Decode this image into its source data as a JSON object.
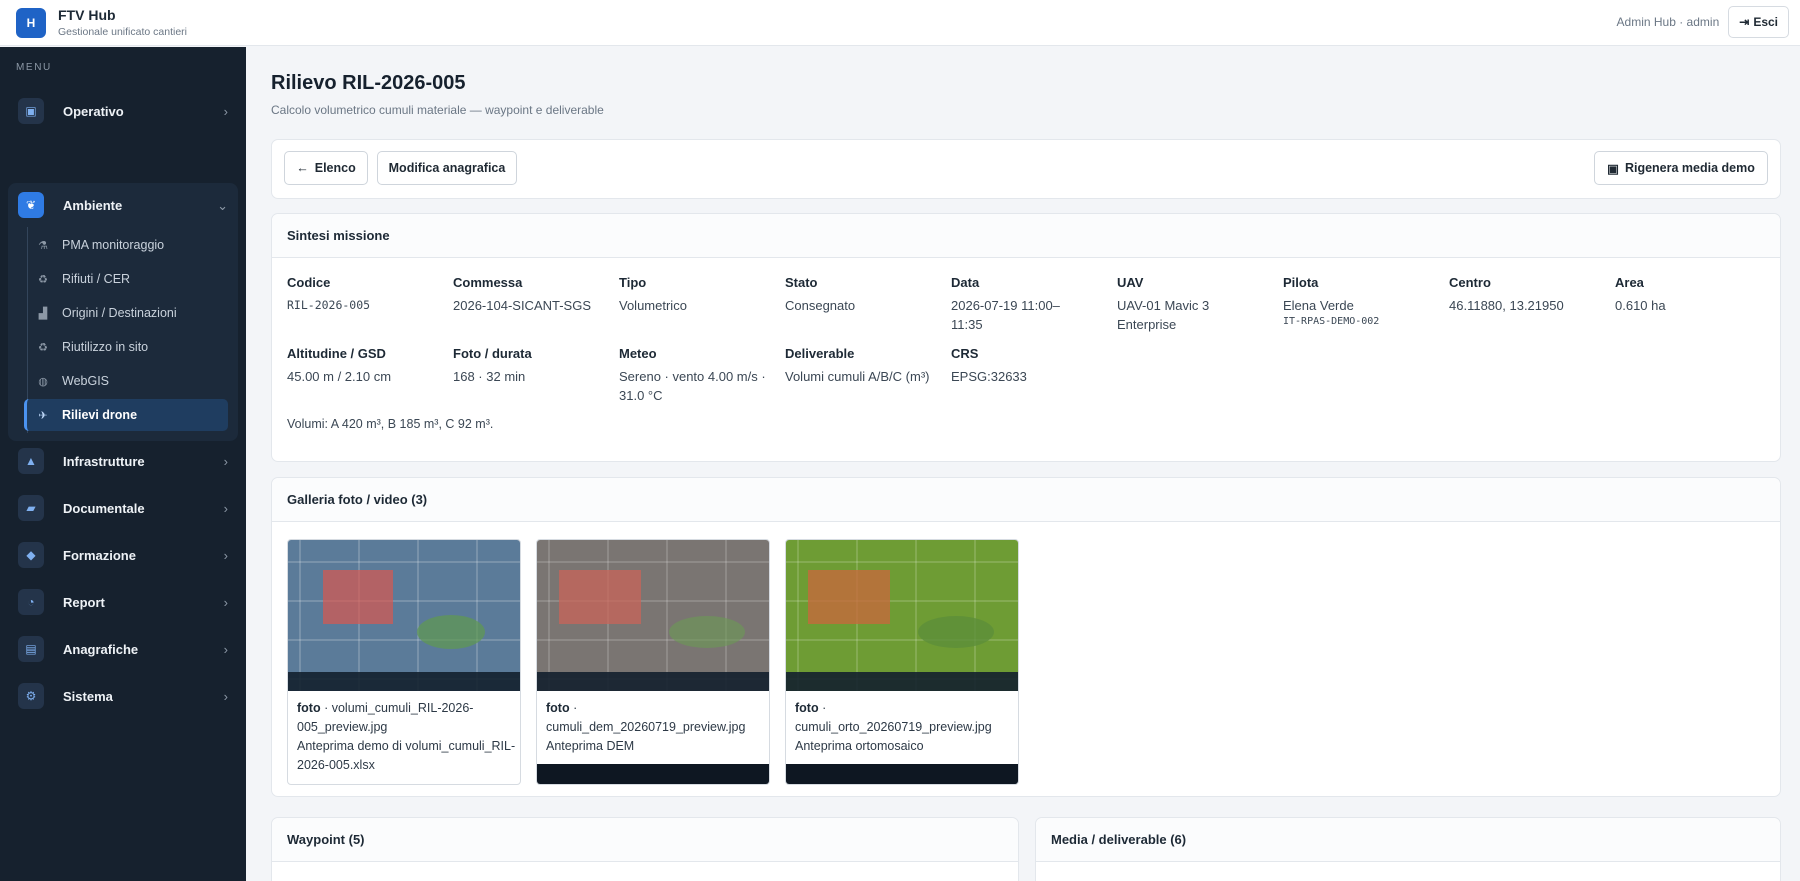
{
  "app": {
    "logo_letter": "H",
    "title": "FTV Hub",
    "subtitle": "Gestionale unificato cantieri"
  },
  "header": {
    "user": "Admin Hub · admin",
    "logout_label": "Esci"
  },
  "sidebar": {
    "heading": "MENU",
    "items": [
      {
        "label": "Operativo",
        "icon": "briefcase-icon"
      },
      {
        "label": "Ambiente",
        "icon": "leaf-icon",
        "expanded": true
      },
      {
        "label": "Infrastrutture",
        "icon": "road-icon"
      },
      {
        "label": "Documentale",
        "icon": "folder-icon"
      },
      {
        "label": "Formazione",
        "icon": "graduation-cap-icon"
      },
      {
        "label": "Report",
        "icon": "pie-chart-icon"
      },
      {
        "label": "Anagrafiche",
        "icon": "id-card-icon"
      },
      {
        "label": "Sistema",
        "icon": "gear-icon"
      }
    ],
    "ambiente_sub": [
      {
        "label": "PMA monitoraggio",
        "icon": "flask-icon"
      },
      {
        "label": "Rifiuti / CER",
        "icon": "recycle-icon"
      },
      {
        "label": "Origini / Destinazioni",
        "icon": "industry-icon"
      },
      {
        "label": "Riutilizzo in sito",
        "icon": "recycle-icon"
      },
      {
        "label": "WebGIS",
        "icon": "globe-icon"
      },
      {
        "label": "Rilievi drone",
        "icon": "drone-icon",
        "active": true
      }
    ]
  },
  "page": {
    "title": "Rilievo RIL-2026-005",
    "subtitle": "Calcolo volumetrico cumuli materiale — waypoint e deliverable"
  },
  "toolbar": {
    "back_label": "Elenco",
    "edit_label": "Modifica anagrafica",
    "regen_label": "Rigenera media demo"
  },
  "summary": {
    "title": "Sintesi missione",
    "fields": {
      "codice": {
        "label": "Codice",
        "value": "RIL-2026-005"
      },
      "commessa": {
        "label": "Commessa",
        "value": "2026-104-SICANT-SGS"
      },
      "tipo": {
        "label": "Tipo",
        "value": "Volumetrico"
      },
      "stato": {
        "label": "Stato",
        "value": "Consegnato"
      },
      "data": {
        "label": "Data",
        "value": "2026-07-19 11:00–11:35"
      },
      "uav": {
        "label": "UAV",
        "value": "UAV-01 Mavic 3 Enterprise"
      },
      "pilota": {
        "label": "Pilota",
        "value": "Elena Verde",
        "sub": "IT-RPAS-DEMO-002"
      },
      "centro": {
        "label": "Centro",
        "value": "46.11880, 13.21950"
      },
      "area": {
        "label": "Area",
        "value": "0.610 ha"
      },
      "altitudine": {
        "label": "Altitudine / GSD",
        "value": "45.00 m / 2.10 cm"
      },
      "foto": {
        "label": "Foto / durata",
        "value": "168 · 32 min"
      },
      "meteo": {
        "label": "Meteo",
        "value": "Sereno · vento 4.00 m/s · 31.0 °C"
      },
      "deliverable": {
        "label": "Deliverable",
        "value": "Volumi cumuli A/B/C (m³)"
      },
      "crs": {
        "label": "CRS",
        "value": "EPSG:32633"
      }
    },
    "note": "Volumi: A 420 m³, B 185 m³, C 92 m³."
  },
  "gallery": {
    "title": "Galleria foto / video (3)",
    "items": [
      {
        "type": "foto",
        "sep": " · ",
        "file": "volumi_cumuli_RIL-2026-005_preview.jpg",
        "desc": "Anteprima demo di volumi_cumuli_RIL-2026-005.xlsx",
        "bg": "#5b7b99"
      },
      {
        "type": "foto",
        "sep": " · ",
        "file": "cumuli_dem_20260719_preview.jpg",
        "desc": "Anteprima DEM",
        "bg": "#7a7572"
      },
      {
        "type": "foto",
        "sep": " · ",
        "file": "cumuli_orto_20260719_preview.jpg",
        "desc": "Anteprima ortomosaico",
        "bg": "#6e9c34"
      }
    ]
  },
  "waypoint": {
    "title": "Waypoint (5)"
  },
  "media": {
    "title": "Media / deliverable (6)"
  }
}
